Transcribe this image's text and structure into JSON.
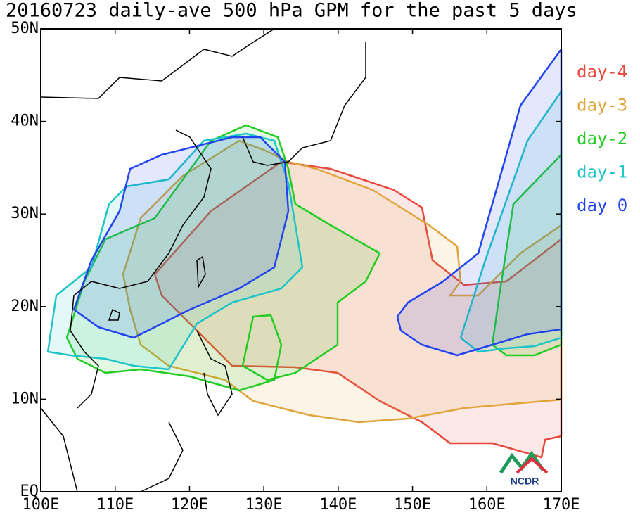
{
  "chart_data": {
    "type": "map",
    "title": "20160723 daily-ave 500 hPa GPM for the past 5 days",
    "xlim": [
      100,
      170
    ],
    "ylim": [
      0,
      50
    ],
    "xticks": [
      {
        "value": 100,
        "label": "100E"
      },
      {
        "value": 110,
        "label": "110E"
      },
      {
        "value": 120,
        "label": "120E"
      },
      {
        "value": 130,
        "label": "130E"
      },
      {
        "value": 140,
        "label": "140E"
      },
      {
        "value": 150,
        "label": "150E"
      },
      {
        "value": 160,
        "label": "160E"
      },
      {
        "value": 170,
        "label": "170E"
      }
    ],
    "yticks": [
      {
        "value": 0,
        "label": "EQ"
      },
      {
        "value": 10,
        "label": "10N"
      },
      {
        "value": 20,
        "label": "20N"
      },
      {
        "value": 30,
        "label": "30N"
      },
      {
        "value": 40,
        "label": "40N"
      },
      {
        "value": 50,
        "label": "50N"
      }
    ],
    "series": [
      {
        "name": "day-4",
        "color": "#e8473c"
      },
      {
        "name": "day-3",
        "color": "#e0a43a"
      },
      {
        "name": "day-2",
        "color": "#22cc22"
      },
      {
        "name": "day-1",
        "color": "#1ec4c8"
      },
      {
        "name": "day 0",
        "color": "#2244ee"
      }
    ],
    "logo": "NCDR"
  }
}
